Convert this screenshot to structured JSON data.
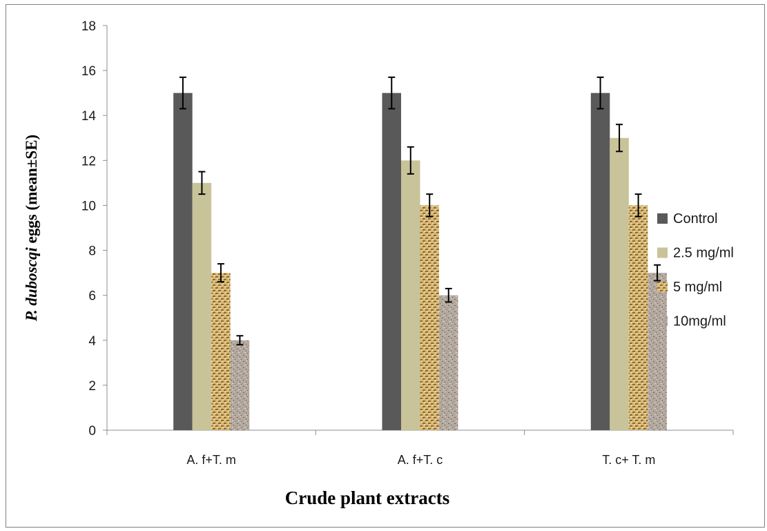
{
  "chart_data": {
    "type": "bar",
    "title": "",
    "xlabel": "Crude plant extracts",
    "ylabel": "P. duboscqi eggs (mean±SE)",
    "ylim": [
      0,
      18
    ],
    "yticks": [
      0,
      2,
      4,
      6,
      8,
      10,
      12,
      14,
      16,
      18
    ],
    "categories": [
      "A. f+T. m",
      "A. f+T. c",
      "T. c+ T. m"
    ],
    "legend_position": "right",
    "grid": false,
    "series": [
      {
        "name": "Control",
        "values": [
          15,
          15,
          15
        ],
        "errors": [
          0.7,
          0.7,
          0.7
        ],
        "color": "#595959",
        "pattern": "solid"
      },
      {
        "name": "2.5 mg/ml",
        "values": [
          11,
          12,
          13
        ],
        "errors": [
          0.5,
          0.6,
          0.6
        ],
        "color": "#c9c39a",
        "pattern": "solid"
      },
      {
        "name": "5 mg/ml",
        "values": [
          7,
          10,
          10
        ],
        "errors": [
          0.4,
          0.5,
          0.5
        ],
        "color": "#c8a45c",
        "pattern": "weave"
      },
      {
        "name": "10mg/ml",
        "values": [
          4,
          6,
          7
        ],
        "errors": [
          0.2,
          0.3,
          0.35
        ],
        "color": "#a89a8e",
        "pattern": "granite"
      }
    ]
  }
}
